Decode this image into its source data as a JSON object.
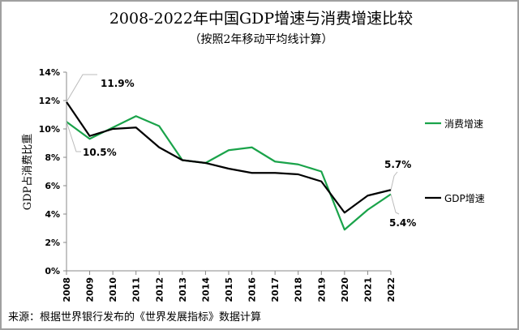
{
  "chart_data": {
    "type": "line",
    "title": "2008-2022年中国GDP增速与消费增速比较",
    "subtitle": "（按照2年移动平均线计算）",
    "ylabel": "GDP占消费比重",
    "xlabel": "",
    "x": [
      "2008",
      "2009",
      "2010",
      "2011",
      "2012",
      "2013",
      "2014",
      "2015",
      "2016",
      "2017",
      "2018",
      "2019",
      "2020",
      "2021",
      "2022"
    ],
    "ylim": [
      0,
      14
    ],
    "yticks": [
      "0%",
      "2%",
      "4%",
      "6%",
      "8%",
      "10%",
      "12%",
      "14%"
    ],
    "grid": false,
    "legend_placement": "right",
    "series": [
      {
        "name": "消费增速",
        "color": "#1aa34a",
        "values": [
          10.5,
          9.3,
          10.1,
          10.9,
          10.2,
          7.8,
          7.6,
          8.5,
          8.7,
          7.7,
          7.5,
          7.0,
          2.9,
          4.3,
          5.4
        ]
      },
      {
        "name": "GDP增速",
        "color": "#000000",
        "values": [
          11.9,
          9.5,
          10.0,
          10.1,
          8.7,
          7.8,
          7.6,
          7.2,
          6.9,
          6.9,
          6.8,
          6.3,
          4.1,
          5.3,
          5.7
        ]
      }
    ],
    "annotations": [
      "11.9%",
      "10.5%",
      "5.7%",
      "5.4%"
    ],
    "source": "来源：根据世界银行发布的《世界发展指标》数据计算"
  }
}
